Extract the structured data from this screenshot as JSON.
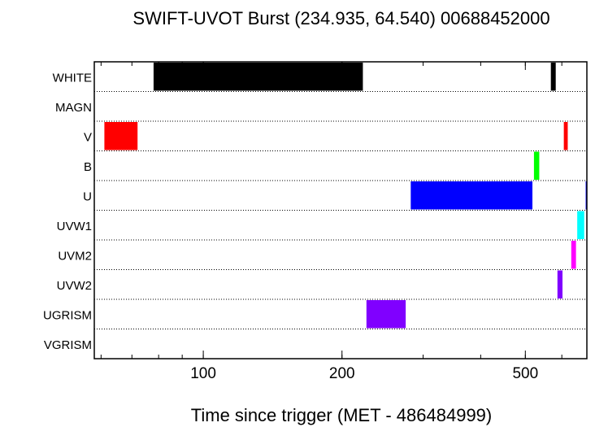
{
  "chart_data": {
    "type": "timeline",
    "title": "SWIFT-UVOT Burst (234.935, 64.540) 00688452000",
    "xlabel": "Time since trigger (MET - 486484999)",
    "xscale": "log",
    "xlim": [
      58,
      680
    ],
    "xticks": [
      {
        "value": 100,
        "label": "100"
      },
      {
        "value": 200,
        "label": "200"
      },
      {
        "value": 500,
        "label": "500"
      }
    ],
    "filters": [
      "WHITE",
      "MAGN",
      "V",
      "B",
      "U",
      "UVW1",
      "UVM2",
      "UVW2",
      "UGRISM",
      "VGRISM"
    ],
    "segments": [
      {
        "filter": "WHITE",
        "start": 78,
        "end": 222,
        "color": "#000000"
      },
      {
        "filter": "WHITE",
        "start": 568,
        "end": 582,
        "color": "#000000"
      },
      {
        "filter": "V",
        "start": 61,
        "end": 72,
        "color": "#ff0000"
      },
      {
        "filter": "V",
        "start": 606,
        "end": 618,
        "color": "#ff0000"
      },
      {
        "filter": "B",
        "start": 522,
        "end": 536,
        "color": "#00ff00"
      },
      {
        "filter": "U",
        "start": 282,
        "end": 518,
        "color": "#0000ff"
      },
      {
        "filter": "U",
        "start": 676,
        "end": 679,
        "color": "#0000ff"
      },
      {
        "filter": "UVW1",
        "start": 648,
        "end": 671,
        "color": "#00ffff"
      },
      {
        "filter": "UVM2",
        "start": 629,
        "end": 644,
        "color": "#ff00ff"
      },
      {
        "filter": "UVW2",
        "start": 587,
        "end": 602,
        "color": "#8000ff"
      },
      {
        "filter": "UGRISM",
        "start": 226,
        "end": 275,
        "color": "#8000ff"
      }
    ]
  }
}
